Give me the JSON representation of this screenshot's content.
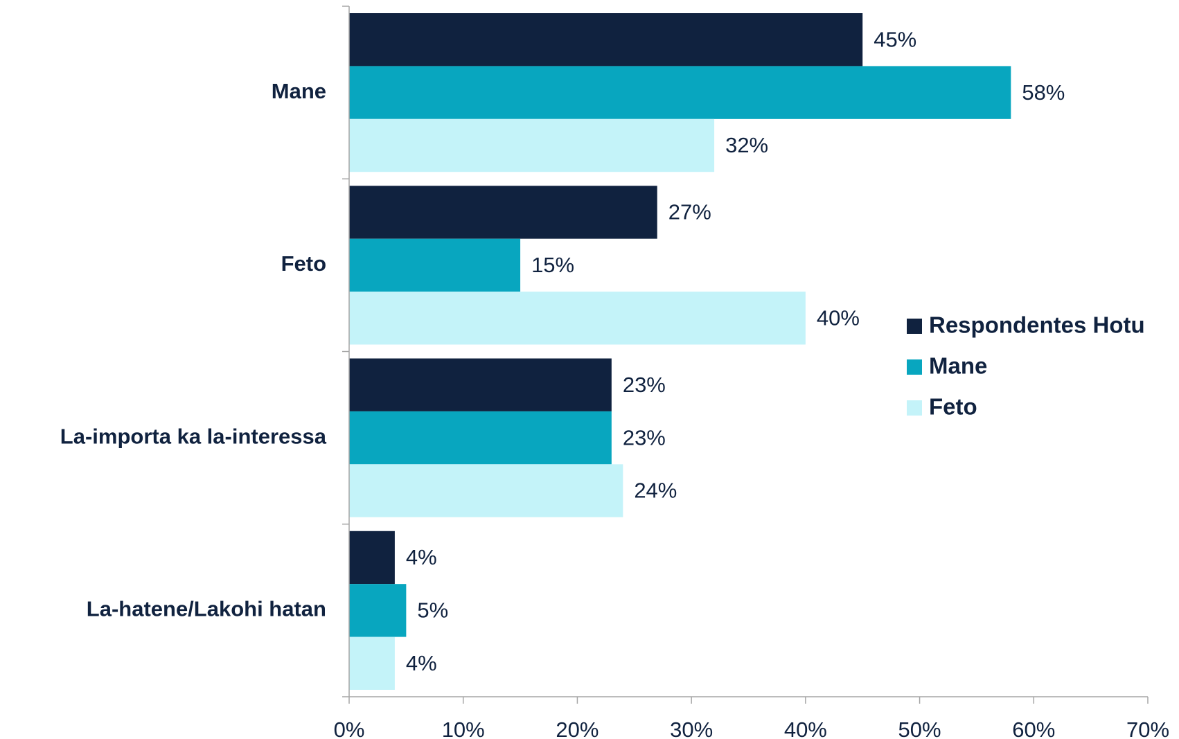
{
  "chart_data": {
    "type": "bar",
    "orientation": "horizontal",
    "categories": [
      "Mane",
      "Feto",
      "La-importa ka la-interessa",
      "La-hatene/Lakohi hatan"
    ],
    "series": [
      {
        "name": "Respondentes Hotu",
        "color": "#10223f",
        "values": [
          45,
          27,
          23,
          4
        ],
        "value_labels": [
          "45%",
          "27%",
          "23%",
          "4%"
        ]
      },
      {
        "name": "Mane",
        "color": "#08a6bf",
        "values": [
          58,
          15,
          23,
          5
        ],
        "value_labels": [
          "58%",
          "15%",
          "23%",
          "5%"
        ]
      },
      {
        "name": "Feto",
        "color": "#c4f3f9",
        "values": [
          32,
          40,
          24,
          4
        ],
        "value_labels": [
          "32%",
          "40%",
          "24%",
          "4%"
        ]
      }
    ],
    "xlim": [
      0,
      70
    ],
    "xticks": [
      {
        "value": 0,
        "label": "0%"
      },
      {
        "value": 10,
        "label": "10%"
      },
      {
        "value": 20,
        "label": "20%"
      },
      {
        "value": 30,
        "label": "30%"
      },
      {
        "value": 40,
        "label": "40%"
      },
      {
        "value": 50,
        "label": "50%"
      },
      {
        "value": 60,
        "label": "60%"
      },
      {
        "value": 70,
        "label": "70%"
      }
    ],
    "legend": "right"
  }
}
